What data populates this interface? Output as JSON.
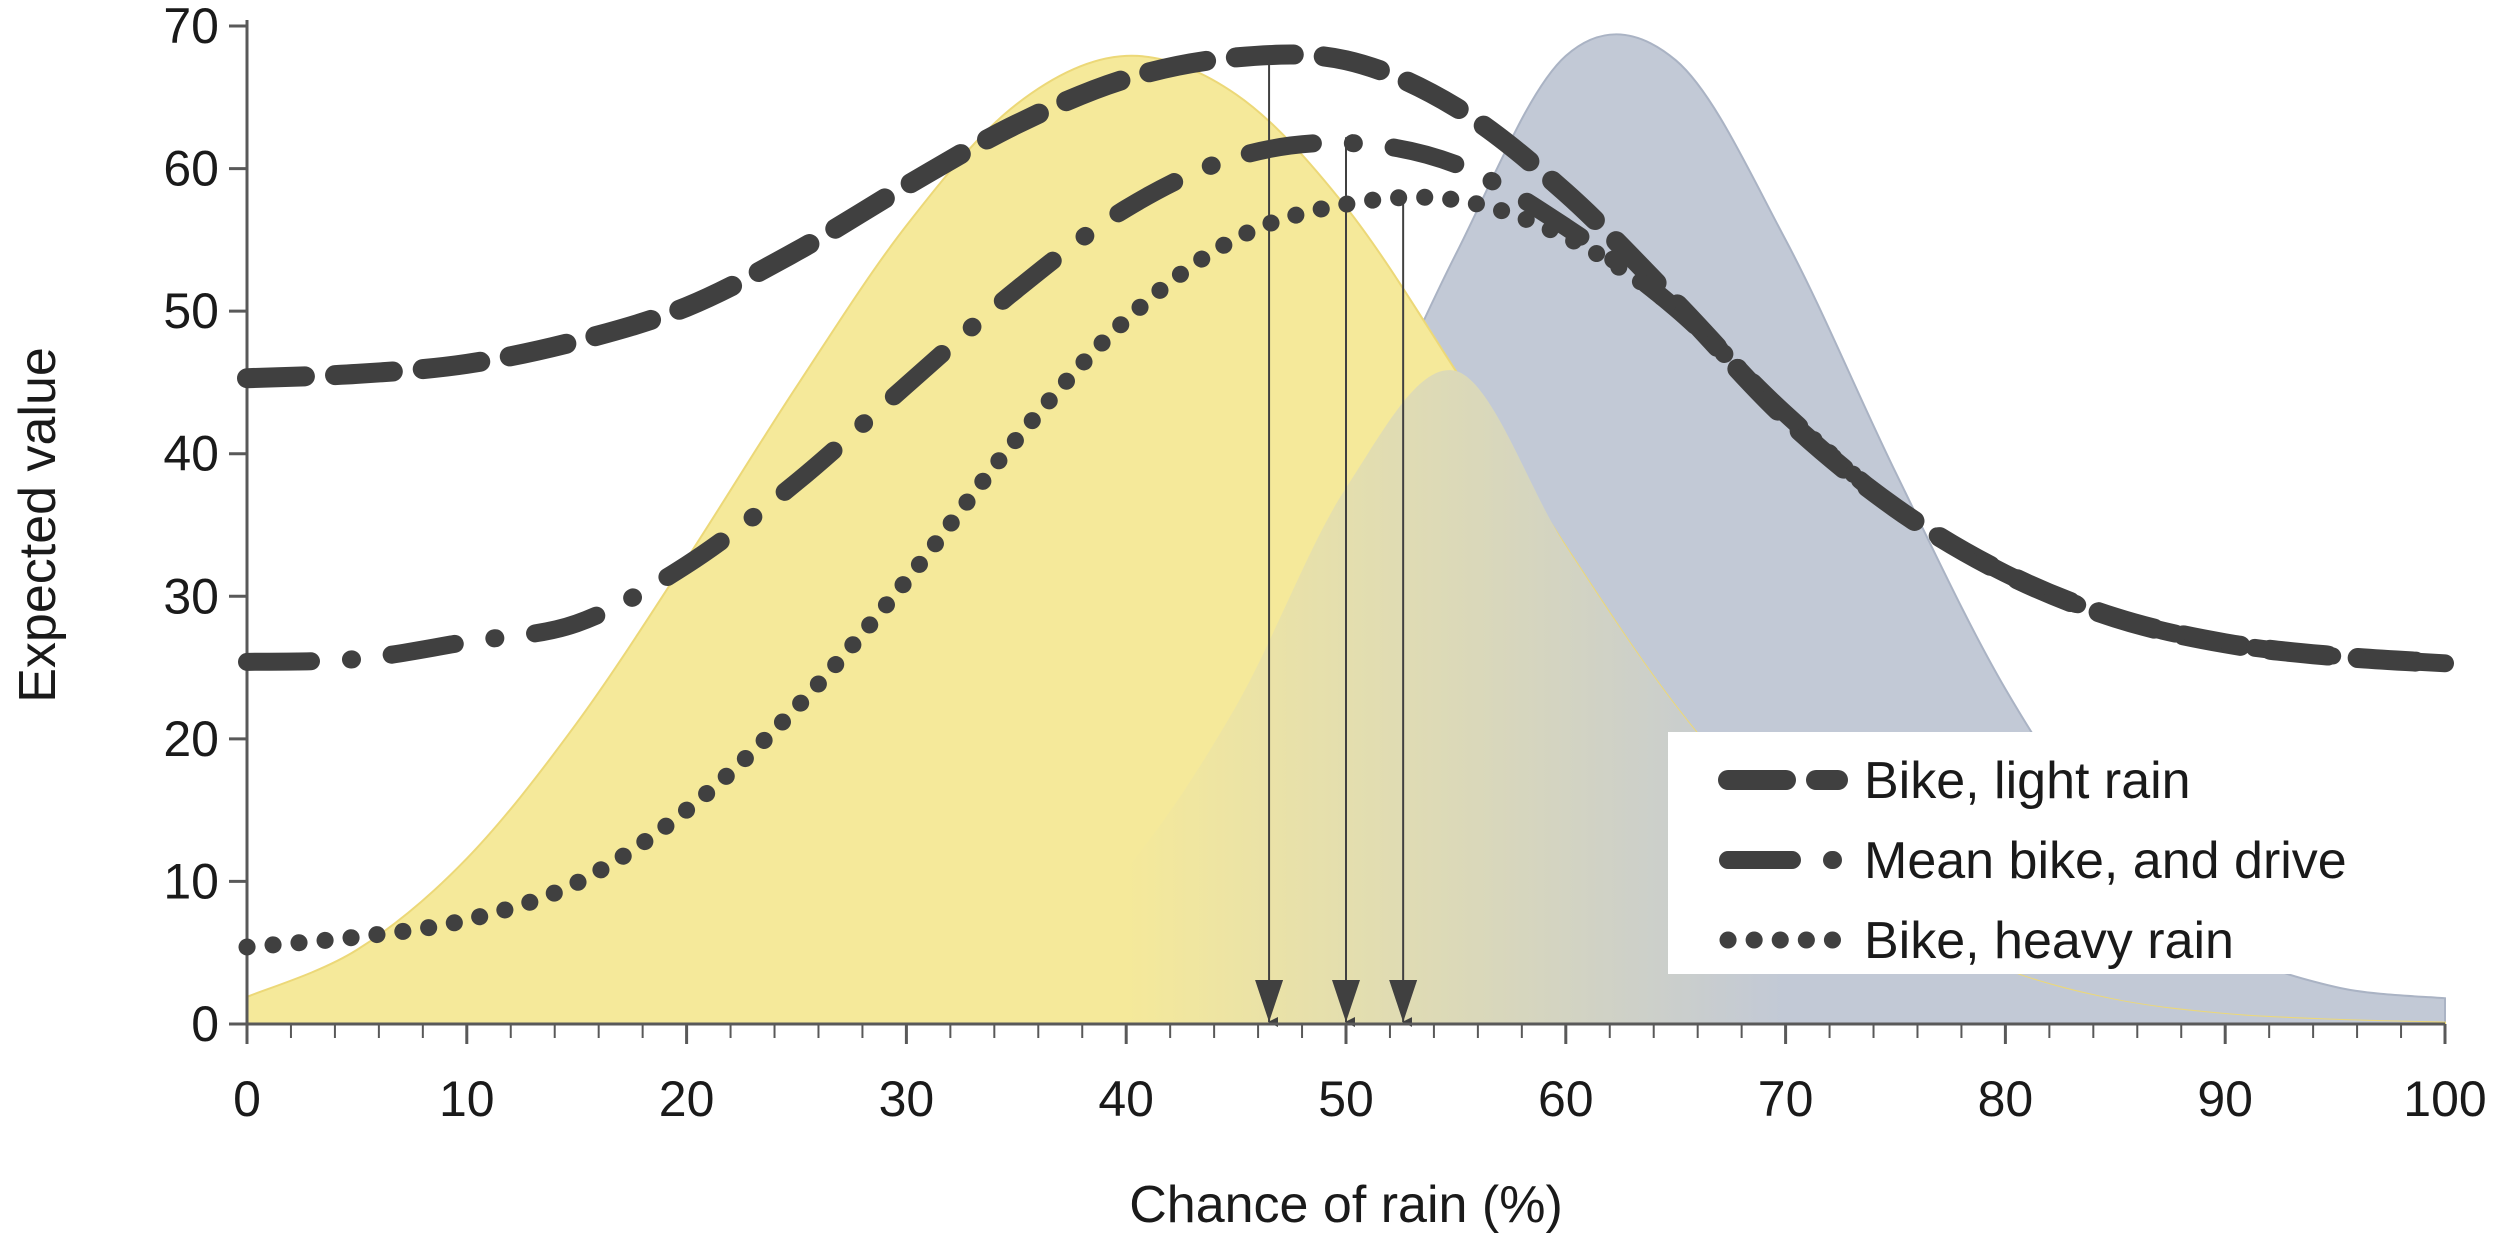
{
  "chart_data": {
    "type": "line",
    "title": "",
    "xlabel": "Chance of rain (%)",
    "ylabel": "Expected value",
    "xlim": [
      0,
      100
    ],
    "ylim": [
      0,
      70
    ],
    "x_ticks": [
      0,
      10,
      20,
      30,
      40,
      50,
      60,
      70,
      80,
      90,
      100
    ],
    "y_ticks": [
      0,
      10,
      20,
      30,
      40,
      50,
      60,
      70
    ],
    "grid": false,
    "legend_position": "bottom-right",
    "x": [
      0,
      5,
      10,
      15,
      20,
      25,
      30,
      35,
      40,
      45,
      50,
      55,
      60,
      65,
      70,
      75,
      80,
      85,
      90,
      95,
      100
    ],
    "series": [
      {
        "name": "Bike, light rain",
        "style": "dashed",
        "values": [
          45.3,
          45.6,
          46.3,
          47.9,
          50.3,
          54.2,
          58.8,
          63.1,
          66.3,
          67.8,
          67.6,
          64.3,
          58.3,
          50.6,
          42.5,
          36.2,
          31.6,
          28.5,
          26.7,
          25.8,
          25.3
        ]
      },
      {
        "name": "Mean bike, and drive",
        "style": "long-dash-dot",
        "values": [
          25.4,
          25.6,
          26.8,
          28.1,
          32.2,
          38.0,
          44.8,
          51.5,
          57.2,
          60.8,
          61.8,
          60.3,
          55.9,
          50.2,
          42.8,
          36.2,
          31.6,
          28.5,
          26.7,
          25.8,
          25.3
        ]
      },
      {
        "name": "Bike, heavy rain",
        "style": "dotted",
        "values": [
          5.4,
          6.1,
          7.3,
          9.9,
          15.0,
          22.2,
          31.1,
          41.0,
          49.4,
          55.1,
          57.5,
          57.8,
          55.2,
          50.2,
          42.8,
          36.2,
          31.6,
          28.5,
          26.7,
          25.8,
          25.3
        ]
      }
    ],
    "shaded_distributions": [
      {
        "color": "#f5e99a",
        "x": [
          0,
          5,
          10,
          15,
          20,
          25,
          30,
          35,
          40,
          45,
          50,
          55,
          60,
          65,
          70,
          75,
          80,
          85,
          90,
          95,
          100
        ],
        "values": [
          1.9,
          5.2,
          11.6,
          21.1,
          32.6,
          44.7,
          56.0,
          64.5,
          67.9,
          65.2,
          57.3,
          45.8,
          33.5,
          22.3,
          13.6,
          7.5,
          3.8,
          1.7,
          0.7,
          0.3,
          0.1
        ]
      },
      {
        "color": "#c2c9d6",
        "x": [
          0,
          5,
          10,
          15,
          20,
          25,
          30,
          35,
          40,
          45,
          50,
          55,
          60,
          65,
          70,
          75,
          80,
          85,
          90,
          95,
          100
        ],
        "values": [
          0.0,
          0.0,
          0.0,
          0.0,
          0.1,
          0.4,
          1.4,
          4.3,
          10.9,
          22.3,
          37.6,
          54.0,
          67.9,
          67.6,
          55.0,
          38.7,
          23.5,
          12.3,
          5.5,
          2.6,
          1.8
        ]
      }
    ],
    "annotations": [
      {
        "type": "arrow",
        "x": 46.5,
        "from_y": 68.0
      },
      {
        "type": "arrow",
        "x": 50.0,
        "from_y": 62.2
      },
      {
        "type": "arrow",
        "x": 52.6,
        "from_y": 57.6
      }
    ],
    "colors": {
      "line": "#404040",
      "axis": "#595959",
      "arrow": "#404040",
      "legend_bg": "#ffffff"
    }
  }
}
